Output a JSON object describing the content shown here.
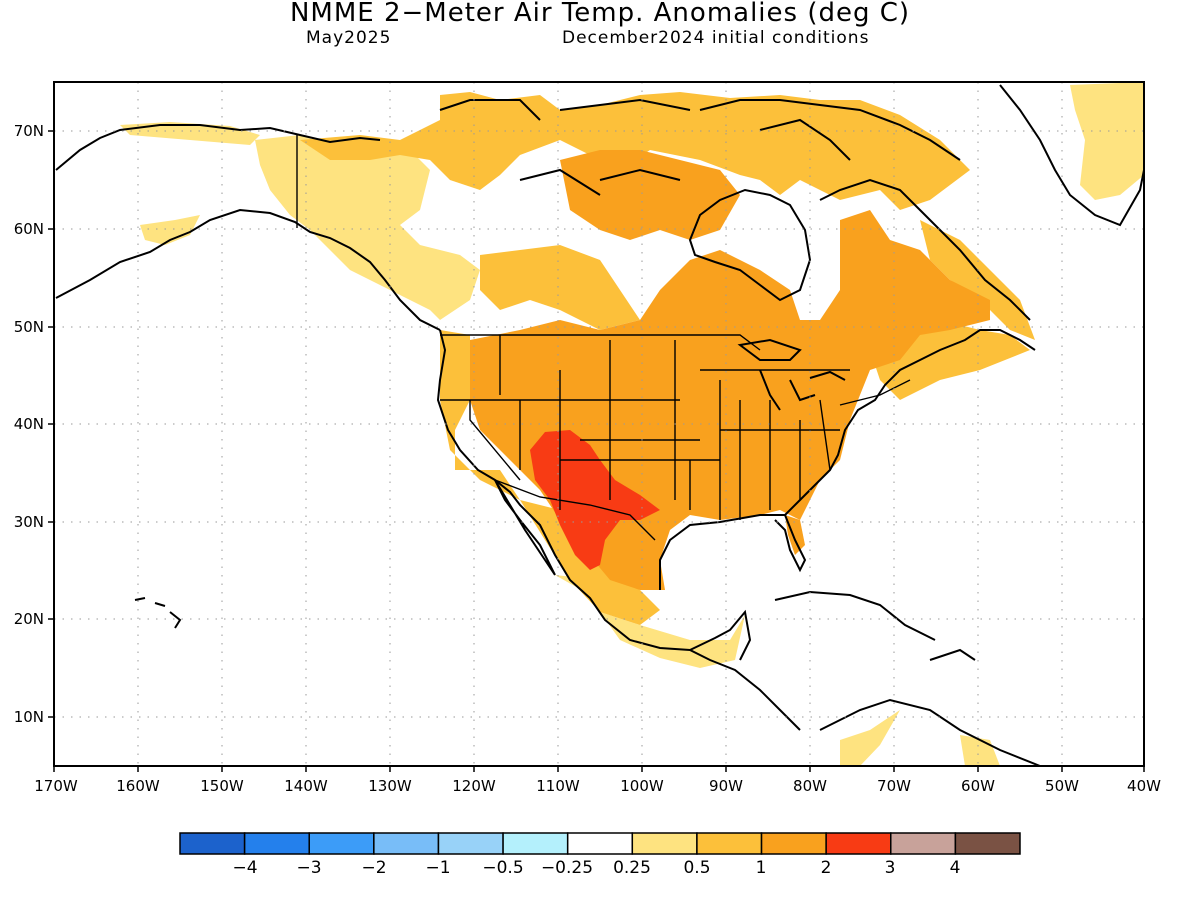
{
  "title": "NMME 2−Meter Air Temp. Anomalies (deg C)",
  "subtitle_left": "May2025",
  "subtitle_right": "December2024 initial conditions",
  "map": {
    "lon_range": [
      -170,
      -40
    ],
    "lat_range": [
      5,
      75
    ],
    "x_ticks": [
      "170W",
      "160W",
      "150W",
      "140W",
      "130W",
      "120W",
      "110W",
      "100W",
      "90W",
      "80W",
      "70W",
      "60W",
      "50W",
      "40W"
    ],
    "y_ticks": [
      "70N",
      "60N",
      "50N",
      "40N",
      "30N",
      "20N",
      "10N"
    ],
    "grid": "dotted",
    "anomaly_regions": [
      {
        "region": "Southwestern US / northern Mexico",
        "category": "2 to 3"
      },
      {
        "region": "Contiguous US",
        "category": "1 to 2"
      },
      {
        "region": "Canadian interior / Quebec",
        "category": "1 to 2"
      },
      {
        "region": "Northern Canada / Arctic islands",
        "category": "0.5 to 1"
      },
      {
        "region": "Alaska fringes / Greenland",
        "category": "0.25 to 0.5"
      },
      {
        "region": "Central America",
        "category": "0.25 to 0.5"
      }
    ]
  },
  "colorbar": {
    "colors": [
      "#1c62cc",
      "#2480ec",
      "#3c9cf8",
      "#78bdf8",
      "#98d2f8",
      "#b4f0fc",
      "#ffffff",
      "#fee380",
      "#fcc03a",
      "#f9a11e",
      "#f83b14",
      "#c8a29a",
      "#7a5244"
    ],
    "labels": [
      "−4",
      "−3",
      "−2",
      "−1",
      "−0.5",
      "−0.25",
      "0.25",
      "0.5",
      "1",
      "2",
      "3",
      "4"
    ]
  }
}
